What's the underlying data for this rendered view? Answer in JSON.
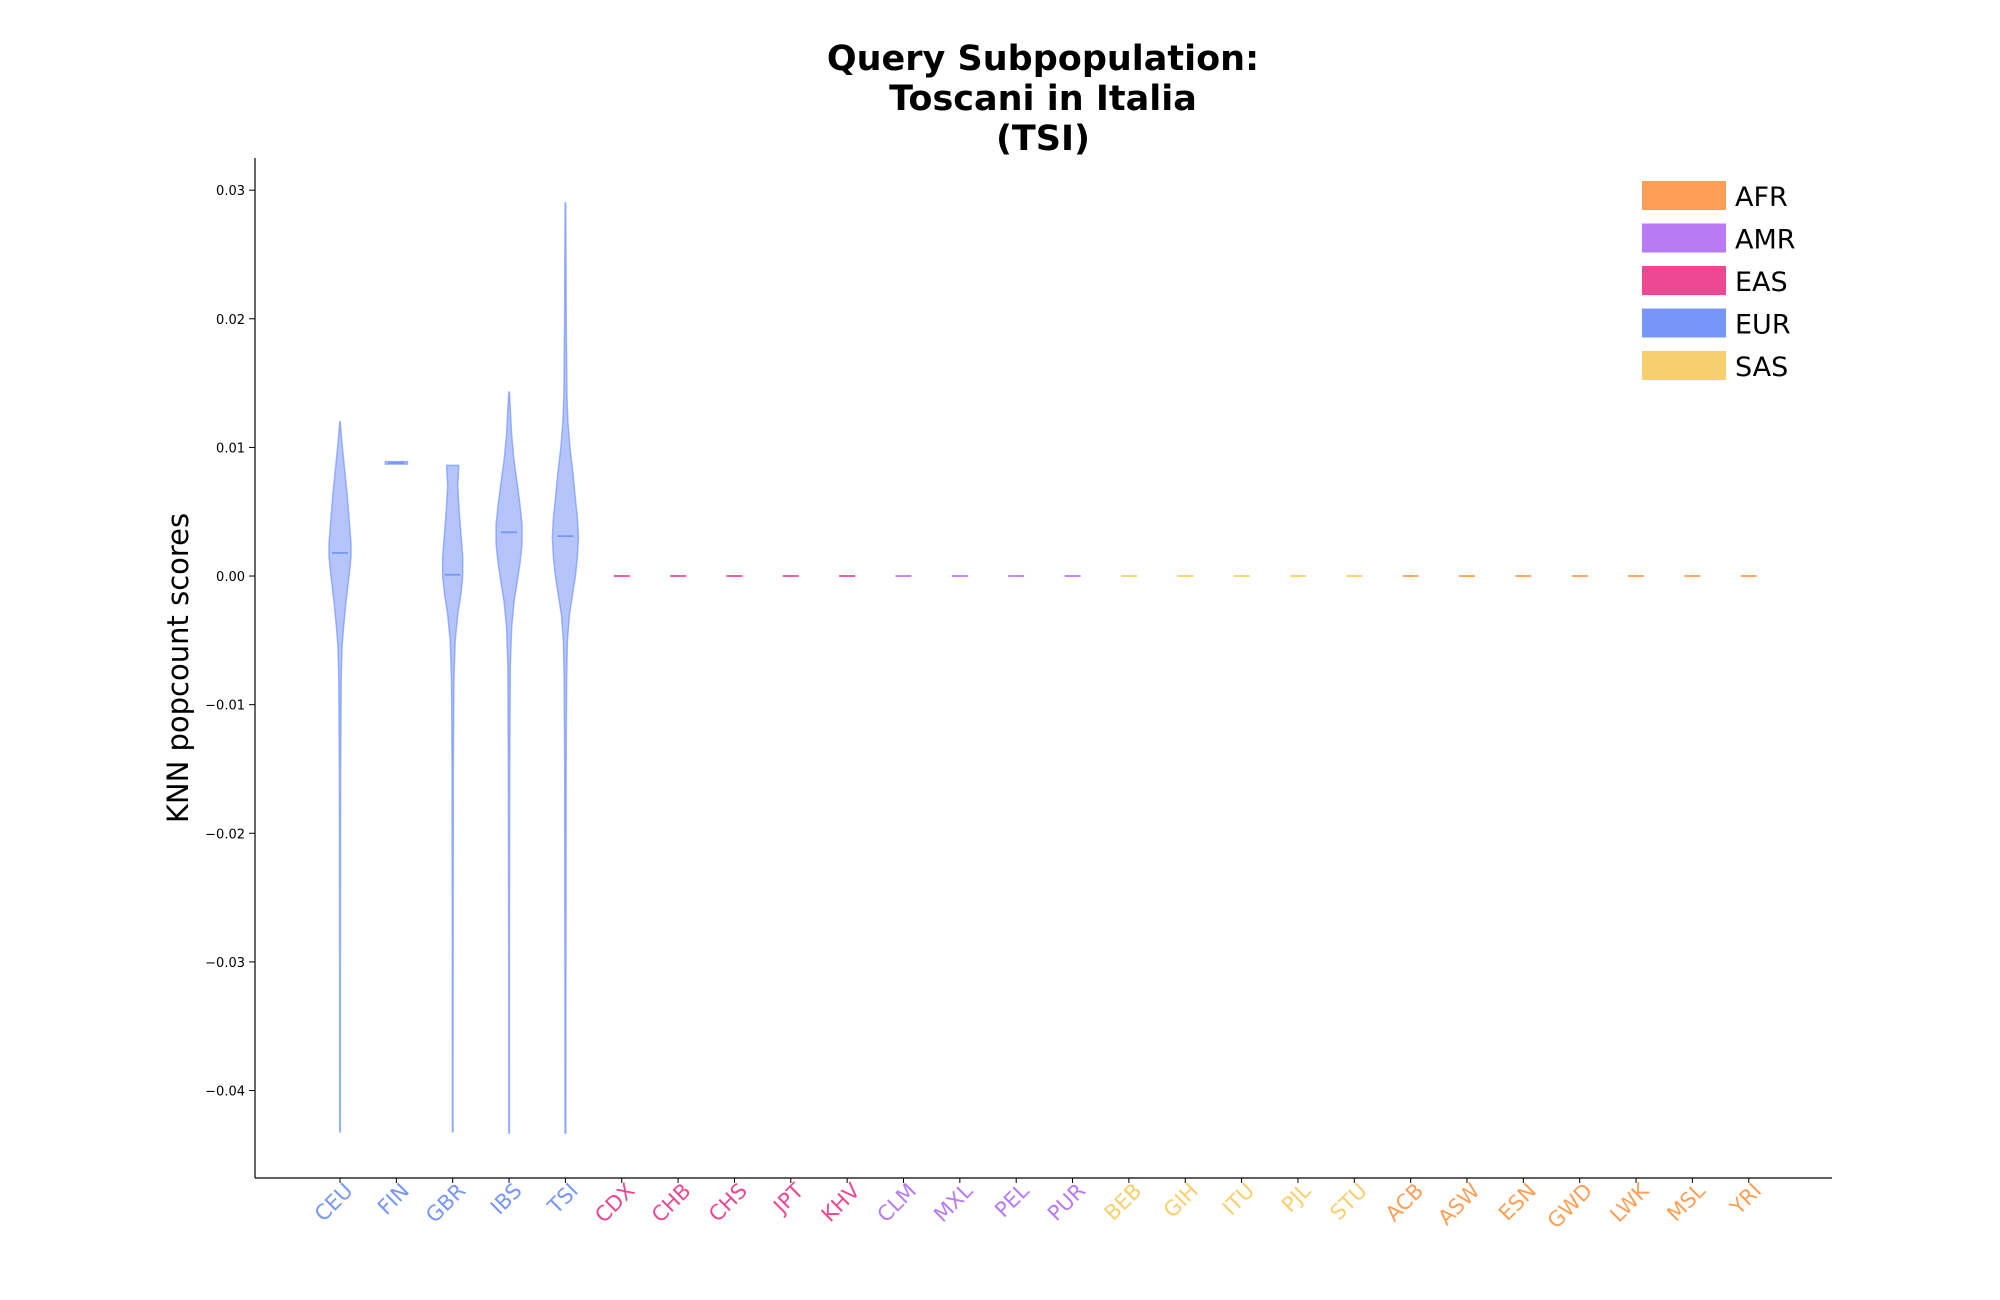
{
  "chart_data": {
    "type": "violin",
    "title": [
      "Query Subpopulation:",
      "Toscani in Italia",
      "(TSI)"
    ],
    "xlabel": "",
    "ylabel": "KNN popcount scores",
    "ylim": [
      -0.0468,
      0.0325
    ],
    "yticks": [
      0.03,
      0.02,
      0.01,
      0.0,
      -0.01,
      -0.02,
      -0.03,
      -0.04
    ],
    "ytick_labels": [
      "0.03",
      "0.02",
      "0.01",
      "0.00",
      "−0.01",
      "−0.02",
      "−0.03",
      "−0.04"
    ],
    "grid": false,
    "legend_position": "top-right",
    "legend": [
      {
        "label": "AFR",
        "color": "#FF9F57"
      },
      {
        "label": "AMR",
        "color": "#B97AF5"
      },
      {
        "label": "EAS",
        "color": "#EC4891"
      },
      {
        "label": "EUR",
        "color": "#7896FA"
      },
      {
        "label": "SAS",
        "color": "#F7CF6D"
      }
    ],
    "group_colors": {
      "AFR": "#FF9F57",
      "AMR": "#B97AF5",
      "EAS": "#EC4891",
      "EUR": "#7896FA",
      "SAS": "#F7CF6D"
    },
    "categories": [
      {
        "name": "CEU",
        "group": "EUR",
        "median": 0.0018,
        "min": -0.0432,
        "max": 0.012,
        "profile": [
          [
            0.012,
            0.2
          ],
          [
            0.011,
            1.2
          ],
          [
            0.0095,
            3
          ],
          [
            0.008,
            5
          ],
          [
            0.006,
            7.5
          ],
          [
            0.004,
            9.5
          ],
          [
            0.0025,
            11
          ],
          [
            0.0015,
            11
          ],
          [
            0.0,
            9
          ],
          [
            -0.002,
            6
          ],
          [
            -0.004,
            3.5
          ],
          [
            -0.0055,
            2
          ],
          [
            -0.008,
            1.2
          ],
          [
            -0.015,
            0.6
          ],
          [
            -0.03,
            0.4
          ],
          [
            -0.0432,
            0.3
          ]
        ]
      },
      {
        "name": "FIN",
        "group": "EUR",
        "median": 0.0088,
        "min": 0.0087,
        "max": 0.0089,
        "profile": [
          [
            0.0089,
            11
          ],
          [
            0.0087,
            11
          ]
        ]
      },
      {
        "name": "GBR",
        "group": "EUR",
        "median": 0.0001,
        "min": -0.0432,
        "max": 0.0086,
        "profile": [
          [
            0.0086,
            6
          ],
          [
            0.0084,
            6
          ],
          [
            0.007,
            5
          ],
          [
            0.005,
            6.5
          ],
          [
            0.003,
            8.5
          ],
          [
            0.0015,
            10
          ],
          [
            0.0,
            10
          ],
          [
            -0.0015,
            8
          ],
          [
            -0.003,
            5
          ],
          [
            -0.005,
            2.5
          ],
          [
            -0.008,
            1.2
          ],
          [
            -0.015,
            0.6
          ],
          [
            -0.03,
            0.4
          ],
          [
            -0.0432,
            0.3
          ]
        ]
      },
      {
        "name": "IBS",
        "group": "EUR",
        "median": 0.0034,
        "min": -0.0433,
        "max": 0.0143,
        "profile": [
          [
            0.0143,
            0.3
          ],
          [
            0.013,
            1.2
          ],
          [
            0.011,
            2.5
          ],
          [
            0.009,
            5
          ],
          [
            0.007,
            8.5
          ],
          [
            0.0055,
            11
          ],
          [
            0.004,
            13
          ],
          [
            0.0025,
            13
          ],
          [
            0.001,
            11
          ],
          [
            -0.0005,
            8
          ],
          [
            -0.002,
            5
          ],
          [
            -0.004,
            2.5
          ],
          [
            -0.007,
            1.2
          ],
          [
            -0.015,
            0.6
          ],
          [
            -0.03,
            0.4
          ],
          [
            -0.0433,
            0.3
          ]
        ]
      },
      {
        "name": "TSI",
        "group": "EUR",
        "median": 0.0031,
        "min": -0.0433,
        "max": 0.029,
        "profile": [
          [
            0.029,
            0.3
          ],
          [
            0.02,
            0.8
          ],
          [
            0.014,
            1.5
          ],
          [
            0.012,
            2.5
          ],
          [
            0.01,
            4.5
          ],
          [
            0.008,
            7.5
          ],
          [
            0.006,
            10
          ],
          [
            0.0045,
            12
          ],
          [
            0.003,
            13
          ],
          [
            0.0015,
            12
          ],
          [
            0.0,
            10
          ],
          [
            -0.0015,
            7
          ],
          [
            -0.003,
            4
          ],
          [
            -0.005,
            2
          ],
          [
            -0.008,
            1.2
          ],
          [
            -0.015,
            0.7
          ],
          [
            -0.03,
            0.5
          ],
          [
            -0.0433,
            0.4
          ]
        ]
      },
      {
        "name": "CDX",
        "group": "EAS",
        "median": 0.0,
        "min": 0.0,
        "max": 0.0,
        "profile": []
      },
      {
        "name": "CHB",
        "group": "EAS",
        "median": 0.0,
        "min": 0.0,
        "max": 0.0,
        "profile": []
      },
      {
        "name": "CHS",
        "group": "EAS",
        "median": 0.0,
        "min": 0.0,
        "max": 0.0,
        "profile": []
      },
      {
        "name": "JPT",
        "group": "EAS",
        "median": 0.0,
        "min": 0.0,
        "max": 0.0,
        "profile": []
      },
      {
        "name": "KHV",
        "group": "EAS",
        "median": 0.0,
        "min": 0.0,
        "max": 0.0,
        "profile": []
      },
      {
        "name": "CLM",
        "group": "AMR",
        "median": 0.0,
        "min": 0.0,
        "max": 0.0,
        "profile": []
      },
      {
        "name": "MXL",
        "group": "AMR",
        "median": 0.0,
        "min": 0.0,
        "max": 0.0,
        "profile": []
      },
      {
        "name": "PEL",
        "group": "AMR",
        "median": 0.0,
        "min": 0.0,
        "max": 0.0,
        "profile": []
      },
      {
        "name": "PUR",
        "group": "AMR",
        "median": 0.0,
        "min": 0.0,
        "max": 0.0,
        "profile": []
      },
      {
        "name": "BEB",
        "group": "SAS",
        "median": 0.0,
        "min": 0.0,
        "max": 0.0,
        "profile": []
      },
      {
        "name": "GIH",
        "group": "SAS",
        "median": 0.0,
        "min": 0.0,
        "max": 0.0,
        "profile": []
      },
      {
        "name": "ITU",
        "group": "SAS",
        "median": 0.0,
        "min": 0.0,
        "max": 0.0,
        "profile": []
      },
      {
        "name": "PJL",
        "group": "SAS",
        "median": 0.0,
        "min": 0.0,
        "max": 0.0,
        "profile": []
      },
      {
        "name": "STU",
        "group": "SAS",
        "median": 0.0,
        "min": 0.0,
        "max": 0.0,
        "profile": []
      },
      {
        "name": "ACB",
        "group": "AFR",
        "median": 0.0,
        "min": 0.0,
        "max": 0.0,
        "profile": []
      },
      {
        "name": "ASW",
        "group": "AFR",
        "median": 0.0,
        "min": 0.0,
        "max": 0.0,
        "profile": []
      },
      {
        "name": "ESN",
        "group": "AFR",
        "median": 0.0,
        "min": 0.0,
        "max": 0.0,
        "profile": []
      },
      {
        "name": "GWD",
        "group": "AFR",
        "median": 0.0,
        "min": 0.0,
        "max": 0.0,
        "profile": []
      },
      {
        "name": "LWK",
        "group": "AFR",
        "median": 0.0,
        "min": 0.0,
        "max": 0.0,
        "profile": []
      },
      {
        "name": "MSL",
        "group": "AFR",
        "median": 0.0,
        "min": 0.0,
        "max": 0.0,
        "profile": []
      },
      {
        "name": "YRI",
        "group": "AFR",
        "median": 0.0,
        "min": 0.0,
        "max": 0.0,
        "profile": []
      }
    ]
  }
}
